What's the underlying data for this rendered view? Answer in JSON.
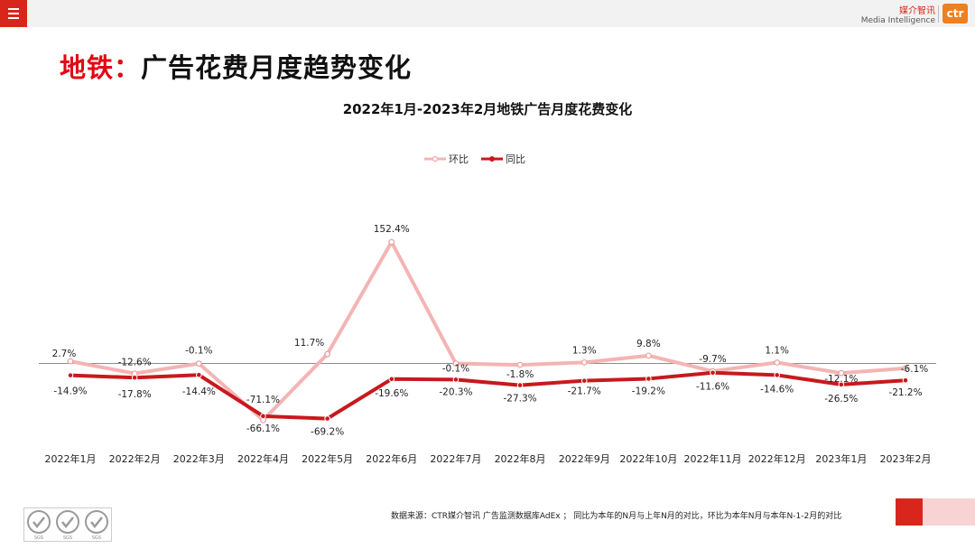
{
  "header": {
    "menu_icon": "hamburger-menu-icon",
    "brand_cn": "媒介智讯",
    "brand_en": "Media Intelligence",
    "logo_text": "ctr"
  },
  "page": {
    "title_accent": "地铁：",
    "title_rest": "广告花费月度趋势变化"
  },
  "footer": {
    "note": "数据来源：CTR媒介智讯 广告监测数据库AdEx ； 同比为本年的N月与上年N月的对比，环比为本年N月与本年N-1-2月的对比",
    "badges": [
      "SGS",
      "SGS",
      "SGS"
    ]
  },
  "colors": {
    "mom": "#f4b4b4",
    "yoy": "#c8191d",
    "accent": "#e30613"
  },
  "chart_data": {
    "type": "line",
    "title": "2022年1月-2023年2月地铁广告月度花费变化",
    "categories": [
      "2022年1月",
      "2022年2月",
      "2022年3月",
      "2022年4月",
      "2022年5月",
      "2022年6月",
      "2022年7月",
      "2022年8月",
      "2022年9月",
      "2022年10月",
      "2022年11月",
      "2022年12月",
      "2023年1月",
      "2023年2月"
    ],
    "series": [
      {
        "name": "环比",
        "color": "#f4b4b4",
        "values": [
          2.7,
          -12.6,
          -0.1,
          -71.1,
          11.7,
          152.4,
          -0.1,
          -1.8,
          1.3,
          9.8,
          -9.7,
          1.1,
          -12.1,
          -6.1
        ],
        "labels": [
          "2.7%",
          "-12.6%",
          "-0.1%",
          "-71.1%",
          "11.7%",
          "152.4%",
          "-0.1%",
          "-1.8%",
          "1.3%",
          "9.8%",
          "-9.7%",
          "1.1%",
          "-12.1%",
          "-6.1%"
        ]
      },
      {
        "name": "同比",
        "color": "#c8191d",
        "values": [
          -14.9,
          -17.8,
          -14.4,
          -66.1,
          -69.2,
          -19.6,
          -20.3,
          -27.3,
          -21.7,
          -19.2,
          -11.6,
          -14.6,
          -26.5,
          -21.2
        ],
        "labels": [
          "-14.9%",
          "-17.8%",
          "-14.4%",
          "-66.1%",
          "-69.2%",
          "-19.6%",
          "-20.3%",
          "-27.3%",
          "-21.7%",
          "-19.2%",
          "-11.6%",
          "-14.6%",
          "-26.5%",
          "-21.2%"
        ]
      }
    ],
    "xlabel": "",
    "ylabel": "",
    "ylim": [
      -80,
      160
    ],
    "legend": "top-center"
  }
}
